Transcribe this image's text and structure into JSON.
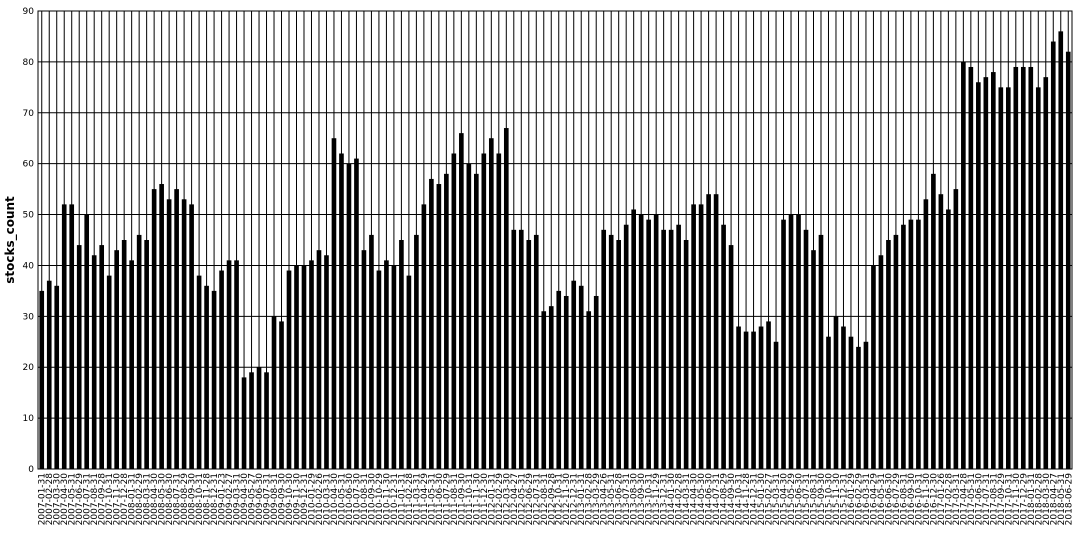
{
  "chart_data": {
    "type": "bar",
    "ylabel": "stocks_count",
    "xlabel": "",
    "ylim": [
      0,
      90
    ],
    "yticks": [
      0,
      10,
      20,
      30,
      40,
      50,
      60,
      70,
      80,
      90
    ],
    "grid": true,
    "bar_color": "#000000",
    "categories": [
      "2007-01-31",
      "2007-02-28",
      "2007-03-30",
      "2007-04-30",
      "2007-05-31",
      "2007-06-29",
      "2007-07-31",
      "2007-08-31",
      "2007-09-28",
      "2007-10-31",
      "2007-11-30",
      "2007-12-28",
      "2008-01-31",
      "2008-02-29",
      "2008-03-31",
      "2008-04-30",
      "2008-05-30",
      "2008-06-30",
      "2008-07-31",
      "2008-08-29",
      "2008-09-30",
      "2008-10-31",
      "2008-11-28",
      "2008-12-31",
      "2009-01-23",
      "2009-02-27",
      "2009-03-31",
      "2009-04-30",
      "2009-05-27",
      "2009-06-30",
      "2009-07-31",
      "2009-08-31",
      "2009-09-30",
      "2009-10-30",
      "2009-11-30",
      "2009-12-31",
      "2010-01-29",
      "2010-02-26",
      "2010-03-31",
      "2010-04-30",
      "2010-05-31",
      "2010-06-30",
      "2010-07-30",
      "2010-08-31",
      "2010-09-30",
      "2010-10-29",
      "2010-11-30",
      "2010-12-31",
      "2011-01-31",
      "2011-02-28",
      "2011-03-31",
      "2011-04-29",
      "2011-05-31",
      "2011-06-30",
      "2011-07-29",
      "2011-08-31",
      "2011-09-30",
      "2011-10-31",
      "2011-11-30",
      "2011-12-30",
      "2012-01-31",
      "2012-02-29",
      "2012-03-30",
      "2012-04-27",
      "2012-05-31",
      "2012-06-29",
      "2012-07-31",
      "2012-08-31",
      "2012-09-28",
      "2012-10-31",
      "2012-11-30",
      "2012-12-31",
      "2013-01-31",
      "2013-02-28",
      "2013-03-29",
      "2013-04-26",
      "2013-05-31",
      "2013-06-28",
      "2013-07-31",
      "2013-08-30",
      "2013-09-30",
      "2013-10-31",
      "2013-11-29",
      "2013-12-31",
      "2014-01-30",
      "2014-02-28",
      "2014-03-31",
      "2014-04-30",
      "2014-05-30",
      "2014-06-30",
      "2014-07-31",
      "2014-08-29",
      "2014-09-30",
      "2014-10-31",
      "2014-11-28",
      "2014-12-31",
      "2015-01-30",
      "2015-02-27",
      "2015-03-31",
      "2015-04-30",
      "2015-05-29",
      "2015-06-30",
      "2015-07-31",
      "2015-08-31",
      "2015-09-30",
      "2015-10-30",
      "2015-11-30",
      "2015-12-31",
      "2016-01-29",
      "2016-02-29",
      "2016-03-31",
      "2016-04-29",
      "2016-05-31",
      "2016-06-30",
      "2016-07-29",
      "2016-08-31",
      "2016-09-30",
      "2016-10-31",
      "2016-11-30",
      "2016-12-30",
      "2017-01-26",
      "2017-02-28",
      "2017-03-31",
      "2017-04-28",
      "2017-05-31",
      "2017-06-30",
      "2017-07-31",
      "2017-08-31",
      "2017-09-29",
      "2017-10-31",
      "2017-11-30",
      "2017-12-29",
      "2018-01-31",
      "2018-02-28",
      "2018-03-30",
      "2018-04-27",
      "2018-05-31",
      "2018-06-29"
    ],
    "values": [
      35,
      37,
      36,
      52,
      52,
      44,
      50,
      42,
      44,
      38,
      43,
      45,
      41,
      46,
      45,
      55,
      56,
      53,
      55,
      53,
      52,
      38,
      36,
      35,
      39,
      41,
      41,
      18,
      19,
      20,
      19,
      30,
      29,
      39,
      40,
      40,
      41,
      43,
      42,
      65,
      62,
      60,
      61,
      43,
      46,
      39,
      41,
      40,
      45,
      38,
      46,
      52,
      57,
      56,
      58,
      62,
      66,
      60,
      58,
      62,
      65,
      62,
      67,
      47,
      47,
      45,
      46,
      31,
      32,
      35,
      34,
      37,
      36,
      31,
      34,
      47,
      46,
      45,
      48,
      51,
      50,
      49,
      50,
      47,
      47,
      48,
      45,
      52,
      52,
      54,
      54,
      48,
      44,
      28,
      27,
      27,
      28,
      29,
      25,
      49,
      50,
      50,
      47,
      43,
      46,
      26,
      30,
      28,
      26,
      24,
      25,
      40,
      42,
      45,
      46,
      48,
      49,
      49,
      53,
      58,
      54,
      51,
      55,
      80,
      79,
      76,
      77,
      78,
      75,
      75,
      79,
      79,
      79,
      75,
      77,
      84,
      86,
      82
    ]
  }
}
